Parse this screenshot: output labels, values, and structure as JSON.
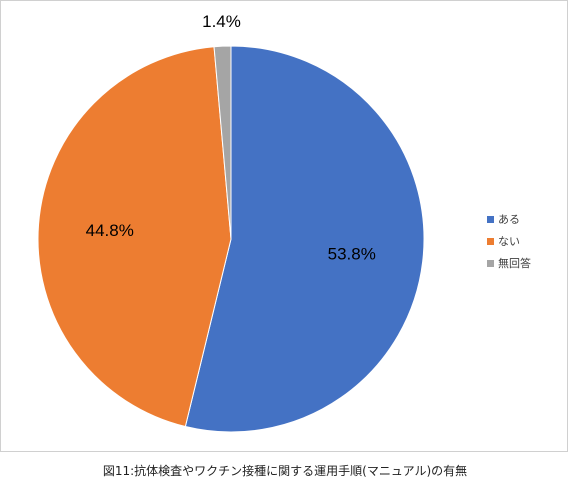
{
  "chart_data": {
    "type": "pie",
    "categories": [
      "ある",
      "ない",
      "無回答"
    ],
    "values": [
      53.8,
      44.8,
      1.4
    ],
    "data_labels": [
      "53.8%",
      "44.8%",
      "1.4%"
    ],
    "colors": [
      "#4472c4",
      "#ed7d31",
      "#a5a5a5"
    ],
    "legend": "right",
    "start_angle_deg": 0,
    "direction": "clockwise"
  },
  "caption": "図11:抗体検査やワクチン接種に関する運用手順(マニュアル)の有無"
}
